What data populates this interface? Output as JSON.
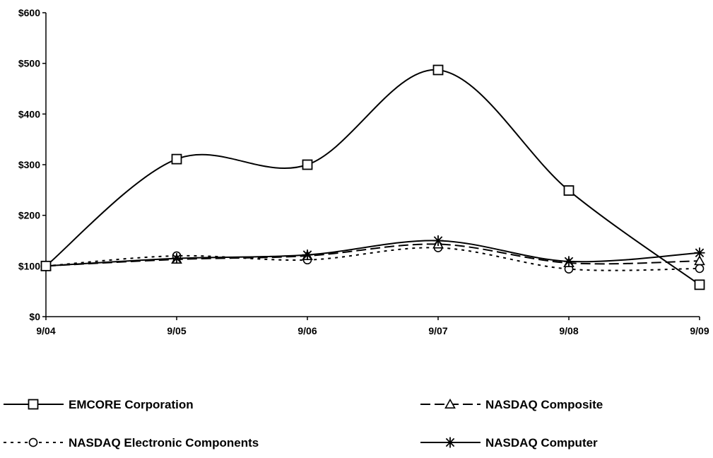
{
  "chart_data": {
    "type": "line",
    "title": "",
    "xlabel": "",
    "ylabel": "",
    "categories": [
      "9/04",
      "9/05",
      "9/06",
      "9/07",
      "9/08",
      "9/09"
    ],
    "ylim": [
      0,
      600
    ],
    "yticks": [
      "$0",
      "$100",
      "$200",
      "$300",
      "$400",
      "$500",
      "$600"
    ],
    "grid": false,
    "legend_position": "bottom",
    "series": [
      {
        "name": "EMCORE Corporation",
        "values": [
          100,
          311,
          300,
          487,
          249,
          63
        ],
        "marker": "square",
        "dash": "solid",
        "color": "#000000"
      },
      {
        "name": "NASDAQ Composite",
        "values": [
          100,
          113,
          120,
          143,
          106,
          110
        ],
        "marker": "triangle",
        "dash": "dashed",
        "color": "#000000"
      },
      {
        "name": "NASDAQ Electronic Components",
        "values": [
          100,
          120,
          112,
          136,
          94,
          95
        ],
        "marker": "circle",
        "dash": "dotted",
        "color": "#000000"
      },
      {
        "name": "NASDAQ Computer",
        "values": [
          100,
          115,
          122,
          150,
          109,
          126
        ],
        "marker": "star",
        "dash": "solid",
        "color": "#000000"
      }
    ]
  }
}
